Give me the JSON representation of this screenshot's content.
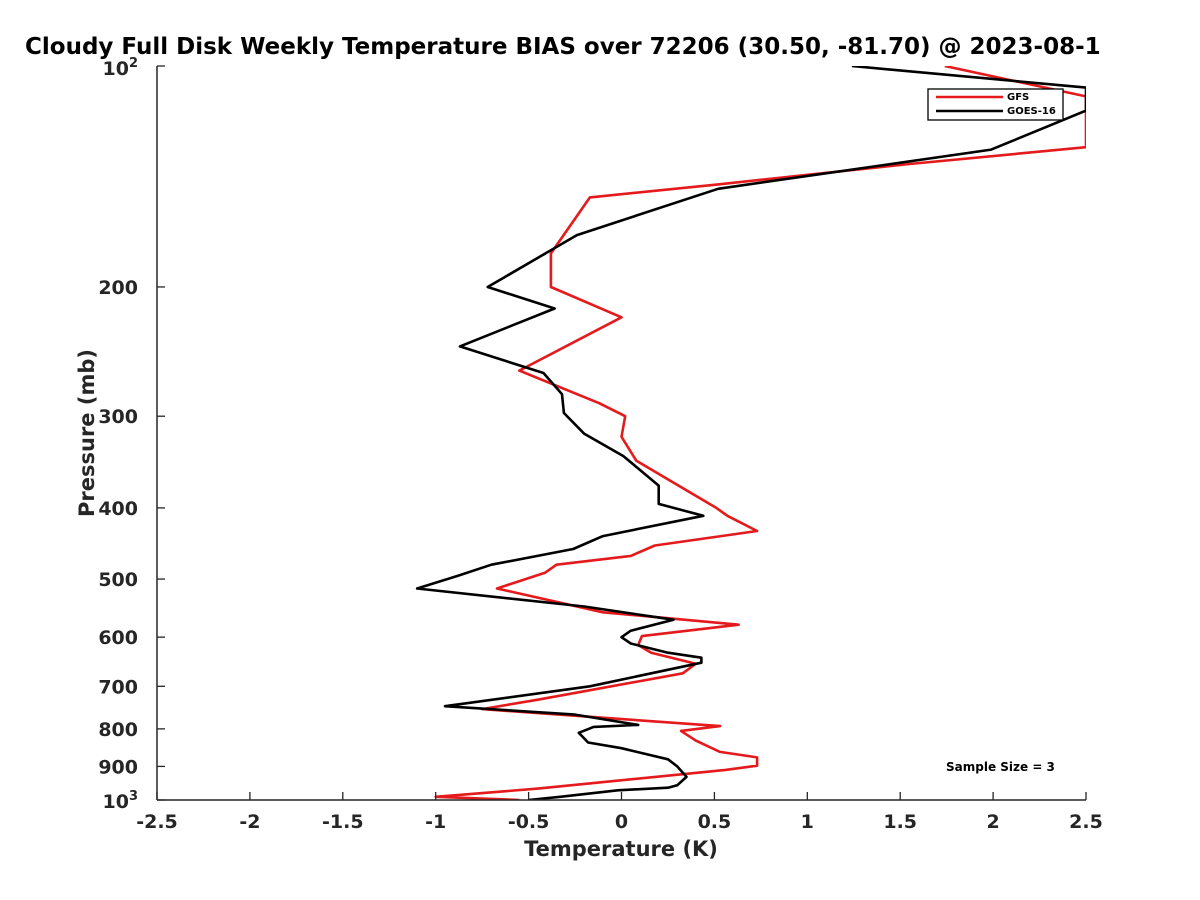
{
  "chart_data": {
    "type": "line",
    "title": "Cloudy Full Disk Weekly Temperature BIAS over 72206 (30.50, -81.70) @ 2023-08-1",
    "xlabel": "Temperature (K)",
    "ylabel": "Pressure (mb)",
    "xlim": [
      -2.5,
      2.5
    ],
    "ylim": [
      100,
      1000
    ],
    "y_scale": "log",
    "y_reversed": true,
    "x_ticks": [
      -2.5,
      -2,
      -1.5,
      -1,
      -0.5,
      0,
      0.5,
      1,
      1.5,
      2,
      2.5
    ],
    "x_tick_labels": [
      "-2.5",
      "-2",
      "-1.5",
      "-1",
      "-0.5",
      "0",
      "0.5",
      "1",
      "1.5",
      "2",
      "2.5"
    ],
    "y_ticks": [
      200,
      300,
      400,
      500,
      600,
      700,
      800,
      900
    ],
    "y_tick_labels": [
      "200",
      "300",
      "400",
      "500",
      "600",
      "700",
      "800",
      "900"
    ],
    "y_top_label": {
      "base": "10",
      "exp": "2"
    },
    "y_bottom_label": {
      "base": "10",
      "exp": "3"
    },
    "legend": {
      "placement": "top-right",
      "entries": [
        "GFS",
        "GOES-16"
      ]
    },
    "annotation": "Sample Size = 3",
    "series": [
      {
        "name": "GFS",
        "color": "#e41a1c",
        "points": [
          [
            1.74,
            100
          ],
          [
            2.5,
            110
          ],
          [
            2.5,
            129
          ],
          [
            1.55,
            136
          ],
          [
            0.52,
            145
          ],
          [
            -0.17,
            151
          ],
          [
            -0.38,
            180
          ],
          [
            -0.38,
            200
          ],
          [
            0.0,
            220
          ],
          [
            -0.55,
            260
          ],
          [
            -0.12,
            288
          ],
          [
            0.02,
            300
          ],
          [
            0.0,
            320
          ],
          [
            0.08,
            345
          ],
          [
            0.51,
            400
          ],
          [
            0.57,
            410
          ],
          [
            0.73,
            430
          ],
          [
            0.18,
            450
          ],
          [
            0.05,
            465
          ],
          [
            -0.35,
            478
          ],
          [
            -0.41,
            490
          ],
          [
            -0.67,
            515
          ],
          [
            -0.1,
            555
          ],
          [
            0.63,
            577
          ],
          [
            0.11,
            598
          ],
          [
            0.09,
            615
          ],
          [
            0.16,
            630
          ],
          [
            0.4,
            652
          ],
          [
            0.33,
            672
          ],
          [
            -0.45,
            730
          ],
          [
            -0.75,
            752
          ],
          [
            0.53,
            793
          ],
          [
            0.32,
            805
          ],
          [
            0.4,
            830
          ],
          [
            0.53,
            860
          ],
          [
            0.73,
            875
          ],
          [
            0.73,
            898
          ],
          [
            0.56,
            910
          ],
          [
            -0.45,
            965
          ],
          [
            -1.0,
            990
          ],
          [
            -0.55,
            1000
          ]
        ]
      },
      {
        "name": "GOES-16",
        "color": "#000000",
        "points": [
          [
            -0.5,
            1000
          ],
          [
            -0.33,
            990
          ],
          [
            -0.02,
            970
          ],
          [
            0.25,
            962
          ],
          [
            0.3,
            955
          ],
          [
            0.35,
            930
          ],
          [
            0.3,
            900
          ],
          [
            0.25,
            880
          ],
          [
            0.0,
            850
          ],
          [
            -0.18,
            835
          ],
          [
            -0.23,
            810
          ],
          [
            -0.15,
            795
          ],
          [
            0.09,
            790
          ],
          [
            -0.25,
            765
          ],
          [
            -0.95,
            745
          ],
          [
            -0.17,
            700
          ],
          [
            0.43,
            650
          ],
          [
            0.43,
            640
          ],
          [
            0.25,
            630
          ],
          [
            0.05,
            612
          ],
          [
            0.0,
            600
          ],
          [
            0.05,
            588
          ],
          [
            0.28,
            568
          ],
          [
            -0.2,
            545
          ],
          [
            -1.1,
            515
          ],
          [
            -0.88,
            495
          ],
          [
            -0.7,
            478
          ],
          [
            -0.26,
            455
          ],
          [
            -0.1,
            437
          ],
          [
            0.44,
            410
          ],
          [
            0.2,
            395
          ],
          [
            0.2,
            373
          ],
          [
            0.01,
            340
          ],
          [
            -0.2,
            317
          ],
          [
            -0.31,
            297
          ],
          [
            -0.32,
            280
          ],
          [
            -0.42,
            262
          ],
          [
            -0.87,
            241
          ],
          [
            -0.36,
            214
          ],
          [
            -0.72,
            200
          ],
          [
            -0.24,
            170
          ],
          [
            0.52,
            147
          ],
          [
            1.99,
            130
          ],
          [
            2.5,
            115
          ],
          [
            2.5,
            107
          ],
          [
            1.24,
            100
          ]
        ]
      }
    ]
  }
}
